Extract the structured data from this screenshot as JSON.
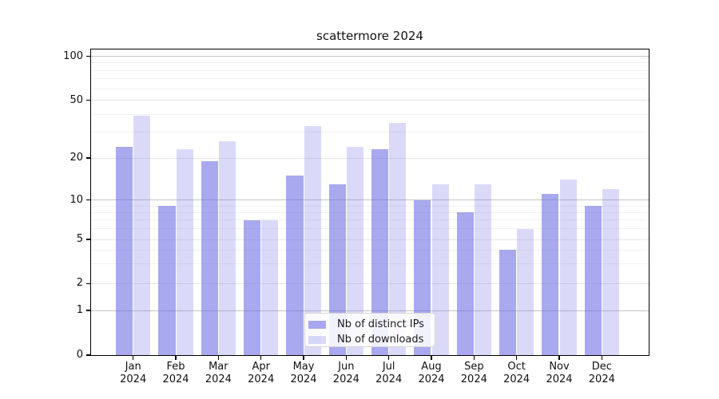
{
  "chart_data": {
    "type": "bar",
    "title": "scattermore 2024",
    "categories": [
      {
        "month": "Jan",
        "year": "2024"
      },
      {
        "month": "Feb",
        "year": "2024"
      },
      {
        "month": "Mar",
        "year": "2024"
      },
      {
        "month": "Apr",
        "year": "2024"
      },
      {
        "month": "May",
        "year": "2024"
      },
      {
        "month": "Jun",
        "year": "2024"
      },
      {
        "month": "Jul",
        "year": "2024"
      },
      {
        "month": "Aug",
        "year": "2024"
      },
      {
        "month": "Sep",
        "year": "2024"
      },
      {
        "month": "Oct",
        "year": "2024"
      },
      {
        "month": "Nov",
        "year": "2024"
      },
      {
        "month": "Dec",
        "year": "2024"
      }
    ],
    "series": [
      {
        "name": "Nb of distinct IPs",
        "color": "rgba(107,107,227,0.58)",
        "values": [
          24,
          9,
          19,
          7,
          15,
          13,
          23,
          10,
          8,
          4,
          11,
          9
        ]
      },
      {
        "name": "Nb of downloads",
        "color": "rgba(107,107,227,0.25)",
        "values": [
          39,
          23,
          26,
          7,
          33,
          24,
          35,
          13,
          13,
          6,
          14,
          12
        ]
      }
    ],
    "y_axis": {
      "scale": "logarithmic-with-zero-baseline",
      "ticks": [
        0,
        1,
        2,
        5,
        10,
        20,
        50,
        100
      ],
      "tick_labels": [
        "0",
        "1",
        "2",
        "5",
        "10",
        "20",
        "50",
        "100"
      ],
      "decade_ticks": [
        1,
        10,
        100
      ],
      "minor_gridline_values": [
        3,
        4,
        6,
        7,
        8,
        9,
        30,
        40,
        60,
        70,
        80,
        90
      ],
      "anchors": [
        [
          0,
          445
        ],
        [
          1,
          389
        ],
        [
          2,
          355.3
        ],
        [
          5,
          300
        ],
        [
          10,
          250.5
        ],
        [
          20,
          198
        ],
        [
          50,
          125.5
        ],
        [
          100,
          70.5
        ]
      ]
    },
    "legend": {
      "position": "inside-bottom-center",
      "items": [
        "Nb of distinct IPs",
        "Nb of downloads"
      ]
    },
    "grid": true
  },
  "colors": {
    "background": "#ffffff",
    "bar_dark": "rgba(107,107,227,0.58)",
    "bar_light": "rgba(107,107,227,0.25)",
    "axis": "#000000",
    "grid_decade": "#c3c3c3",
    "grid_labeled": "#e6e6e6",
    "grid_minor": "#f1f1f1",
    "text": "#111111",
    "legend_border": "#d6d6d6",
    "legend_background": "rgba(255,255,255,0.85)"
  }
}
